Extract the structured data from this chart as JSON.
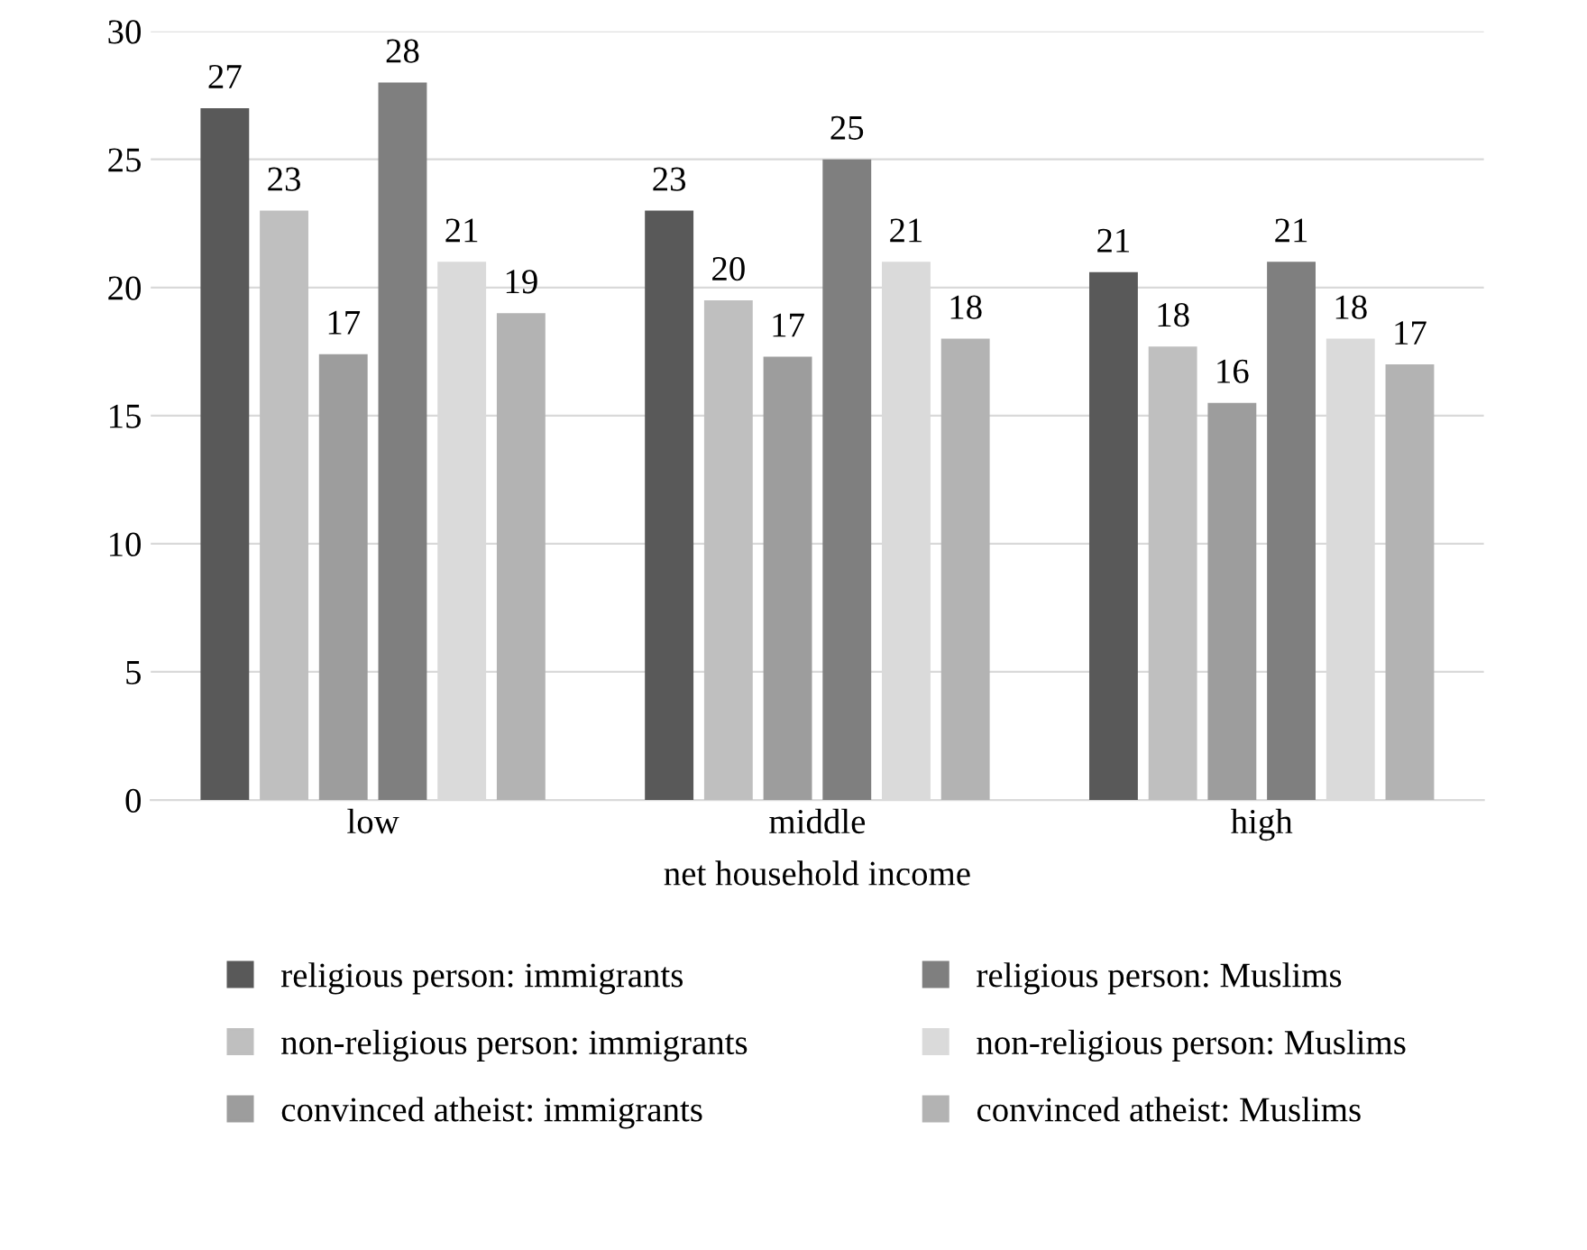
{
  "chart_data": {
    "type": "bar",
    "xlabel": "net household income",
    "categories": [
      "low",
      "middle",
      "high"
    ],
    "series": [
      {
        "name": "religious person: immigrants",
        "color": "#595959",
        "values": [
          27,
          23,
          20.6
        ],
        "value_labels": [
          "27",
          "23",
          "21"
        ]
      },
      {
        "name": "non-religious person: immigrants",
        "color": "#bfbfbf",
        "values": [
          23,
          19.5,
          17.7
        ],
        "value_labels": [
          "23",
          "20",
          "18"
        ]
      },
      {
        "name": "convinced atheist: immigrants",
        "color": "#9d9d9d",
        "values": [
          17.4,
          17.3,
          15.5
        ],
        "value_labels": [
          "17",
          "17",
          "16"
        ]
      },
      {
        "name": "religious person: Muslims",
        "color": "#7f7f7f",
        "values": [
          28,
          25,
          21
        ],
        "value_labels": [
          "28",
          "25",
          "21"
        ]
      },
      {
        "name": "non-religious person: Muslims",
        "color": "#dadada",
        "values": [
          21,
          21,
          18
        ],
        "value_labels": [
          "21",
          "21",
          "18"
        ]
      },
      {
        "name": "convinced atheist: Muslims",
        "color": "#b3b3b3",
        "values": [
          19,
          18,
          17
        ],
        "value_labels": [
          "19",
          "18",
          "17"
        ]
      }
    ],
    "ylim": [
      0,
      30
    ],
    "yticks": [
      0,
      5,
      10,
      15,
      20,
      25,
      30
    ],
    "grid": "y",
    "legend": "bottom"
  }
}
